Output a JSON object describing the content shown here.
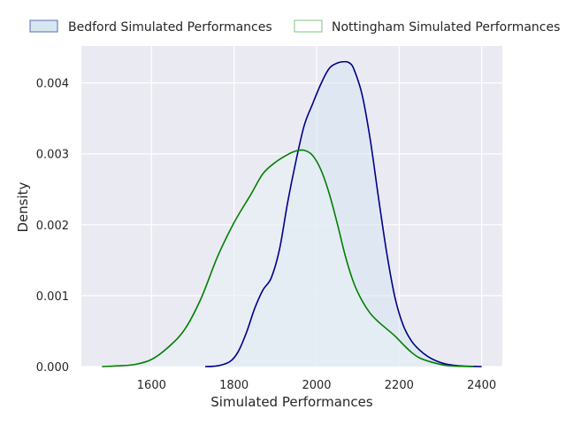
{
  "chart_data": {
    "type": "area",
    "title": "",
    "xlabel": "Simulated Performances",
    "ylabel": "Density",
    "xlim": [
      1430,
      2450
    ],
    "ylim": [
      0,
      0.00452
    ],
    "xticks": [
      1600,
      1800,
      2000,
      2200,
      2400
    ],
    "yticks": [
      0,
      0.001,
      0.002,
      0.003,
      0.004
    ],
    "xtick_labels": [
      "1600",
      "1800",
      "2000",
      "2200",
      "2400"
    ],
    "ytick_labels": [
      "0.000",
      "0.001",
      "0.002",
      "0.003",
      "0.004"
    ],
    "grid": true,
    "legend_position": "top",
    "series": [
      {
        "name": "Bedford Simulated Performances",
        "color": "#00008b",
        "fill": "#d6e6f2",
        "x": [
          1730,
          1760,
          1790,
          1810,
          1830,
          1850,
          1870,
          1890,
          1910,
          1930,
          1950,
          1970,
          1990,
          2010,
          2030,
          2050,
          2070,
          2080,
          2090,
          2110,
          2130,
          2150,
          2170,
          2190,
          2210,
          2230,
          2250,
          2270,
          2290,
          2310,
          2330,
          2360,
          2400
        ],
        "y": [
          0.0,
          1e-05,
          7e-05,
          0.00021,
          0.00048,
          0.00082,
          0.00108,
          0.00125,
          0.00165,
          0.00232,
          0.0029,
          0.0034,
          0.0037,
          0.00398,
          0.0042,
          0.00428,
          0.0043,
          0.00428,
          0.0042,
          0.00384,
          0.0032,
          0.00238,
          0.0016,
          0.00097,
          0.00058,
          0.00036,
          0.00023,
          0.00014,
          8e-05,
          4e-05,
          2e-05,
          5e-06,
          0.0
        ]
      },
      {
        "name": "Nottingham Simulated Performances",
        "color": "#008000",
        "fill": "#e8eef5",
        "x": [
          1480,
          1520,
          1560,
          1600,
          1640,
          1680,
          1720,
          1760,
          1800,
          1840,
          1870,
          1900,
          1930,
          1950,
          1970,
          1990,
          2010,
          2030,
          2050,
          2070,
          2090,
          2110,
          2130,
          2150,
          2170,
          2190,
          2210,
          2230,
          2250,
          2280,
          2310,
          2340,
          2380
        ],
        "y": [
          0.0,
          1e-05,
          3e-05,
          0.0001,
          0.00027,
          0.00052,
          0.00096,
          0.00155,
          0.00203,
          0.00242,
          0.00272,
          0.00288,
          0.00299,
          0.00304,
          0.00305,
          0.00298,
          0.00278,
          0.00245,
          0.00202,
          0.00155,
          0.00118,
          0.00093,
          0.00075,
          0.00063,
          0.00053,
          0.00043,
          0.00031,
          0.0002,
          0.00012,
          6e-05,
          2e-05,
          5e-06,
          0.0
        ]
      }
    ]
  }
}
